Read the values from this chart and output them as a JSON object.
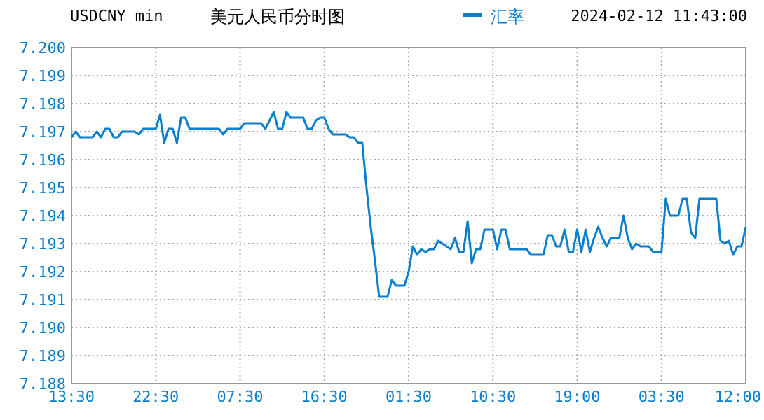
{
  "chart_data": {
    "type": "line",
    "title": "美元人民币分时图",
    "subtitle": "USDCNY min",
    "annotations": [
      "2024-02-12 11:43:00"
    ],
    "legend": "top",
    "grid": true,
    "categories": [
      "13:30",
      null,
      null,
      null,
      null,
      null,
      null,
      null,
      null,
      null,
      null,
      null,
      null,
      null,
      null,
      null,
      null,
      null,
      null,
      null,
      "22:30",
      null,
      null,
      null,
      null,
      null,
      null,
      null,
      null,
      null,
      null,
      null,
      null,
      null,
      null,
      null,
      null,
      null,
      null,
      null,
      "07:30",
      null,
      null,
      null,
      null,
      null,
      null,
      null,
      null,
      null,
      null,
      null,
      null,
      null,
      null,
      null,
      null,
      null,
      null,
      null,
      "16:30",
      null,
      null,
      null,
      null,
      null,
      null,
      null,
      null,
      null,
      null,
      null,
      null,
      null,
      null,
      null,
      null,
      null,
      null,
      null,
      "01:30",
      null,
      null,
      null,
      null,
      null,
      null,
      null,
      null,
      null,
      null,
      null,
      null,
      null,
      null,
      null,
      null,
      null,
      null,
      null,
      "10:30",
      null,
      null,
      null,
      null,
      null,
      null,
      null,
      null,
      null,
      null,
      null,
      null,
      null,
      null,
      null,
      null,
      null,
      null,
      null,
      "19:00",
      null,
      null,
      null,
      null,
      null,
      null,
      null,
      null,
      null,
      null,
      null,
      null,
      null,
      null,
      null,
      null,
      null,
      null,
      null,
      "03:30",
      null,
      null,
      null,
      null,
      null,
      null,
      null,
      null,
      null,
      null,
      null,
      null,
      null,
      null,
      null,
      null,
      null,
      null,
      null,
      "12:00"
    ],
    "ylim": [
      7.188,
      7.2
    ],
    "yticks": [
      {
        "value": 7.188,
        "label": "7.188"
      },
      {
        "value": 7.189,
        "label": "7.189"
      },
      {
        "value": 7.19,
        "label": "7.190"
      },
      {
        "value": 7.191,
        "label": "7.191"
      },
      {
        "value": 7.192,
        "label": "7.192"
      },
      {
        "value": 7.193,
        "label": "7.193"
      },
      {
        "value": 7.194,
        "label": "7.194"
      },
      {
        "value": 7.195,
        "label": "7.195"
      },
      {
        "value": 7.196,
        "label": "7.196"
      },
      {
        "value": 7.197,
        "label": "7.197"
      },
      {
        "value": 7.198,
        "label": "7.198"
      },
      {
        "value": 7.199,
        "label": "7.199"
      },
      {
        "value": 7.2,
        "label": "7.200"
      }
    ],
    "series": [
      {
        "name": "汇率",
        "color": "#0a7fcc",
        "values": [
          7.1968,
          7.197,
          7.1968,
          7.1968,
          7.1968,
          7.1968,
          7.197,
          7.1968,
          7.1971,
          7.1971,
          7.1968,
          7.1968,
          7.197,
          7.197,
          7.197,
          7.197,
          7.1969,
          7.1971,
          7.1971,
          7.1971,
          7.1971,
          7.1976,
          7.1966,
          7.1971,
          7.1971,
          7.1966,
          7.1975,
          7.1975,
          7.1971,
          7.1971,
          7.1971,
          7.1971,
          7.1971,
          7.1971,
          7.1971,
          7.1971,
          7.1969,
          7.1971,
          7.1971,
          7.1971,
          7.1971,
          7.1973,
          7.1973,
          7.1973,
          7.1973,
          7.1973,
          7.1971,
          7.1974,
          7.1977,
          7.1971,
          7.1971,
          7.1977,
          7.1975,
          7.1975,
          7.1975,
          7.1975,
          7.1971,
          7.1971,
          7.1974,
          7.1975,
          7.1975,
          7.1971,
          7.1969,
          7.1969,
          7.1969,
          7.1969,
          7.1968,
          7.1968,
          7.1966,
          7.1966,
          7.195,
          7.1936,
          7.1924,
          7.1911,
          7.1911,
          7.1911,
          7.1917,
          7.1915,
          7.1915,
          7.1915,
          7.192,
          7.1929,
          7.1926,
          7.1928,
          7.1927,
          7.1928,
          7.1928,
          7.1931,
          7.193,
          7.1929,
          7.1928,
          7.1932,
          7.1927,
          7.1927,
          7.1938,
          7.1923,
          7.1928,
          7.1928,
          7.1935,
          7.1935,
          7.1935,
          7.1928,
          7.1935,
          7.1935,
          7.1928,
          7.1928,
          7.1928,
          7.1928,
          7.1928,
          7.1926,
          7.1926,
          7.1926,
          7.1926,
          7.1933,
          7.1933,
          7.1929,
          7.1929,
          7.1935,
          7.1927,
          7.1927,
          7.1935,
          7.1927,
          7.1935,
          7.1927,
          7.1932,
          7.1936,
          7.1932,
          7.1929,
          7.1932,
          7.1932,
          7.1932,
          7.194,
          7.1932,
          7.1928,
          7.193,
          7.1929,
          7.1929,
          7.1929,
          7.1927,
          7.1927,
          7.1927,
          7.1946,
          7.194,
          7.194,
          7.194,
          7.1946,
          7.1946,
          7.1934,
          7.1932,
          7.1946,
          7.1946,
          7.1946,
          7.1946,
          7.1946,
          7.1931,
          7.193,
          7.1931,
          7.1926,
          7.1929,
          7.1929,
          7.1936
        ]
      }
    ]
  }
}
